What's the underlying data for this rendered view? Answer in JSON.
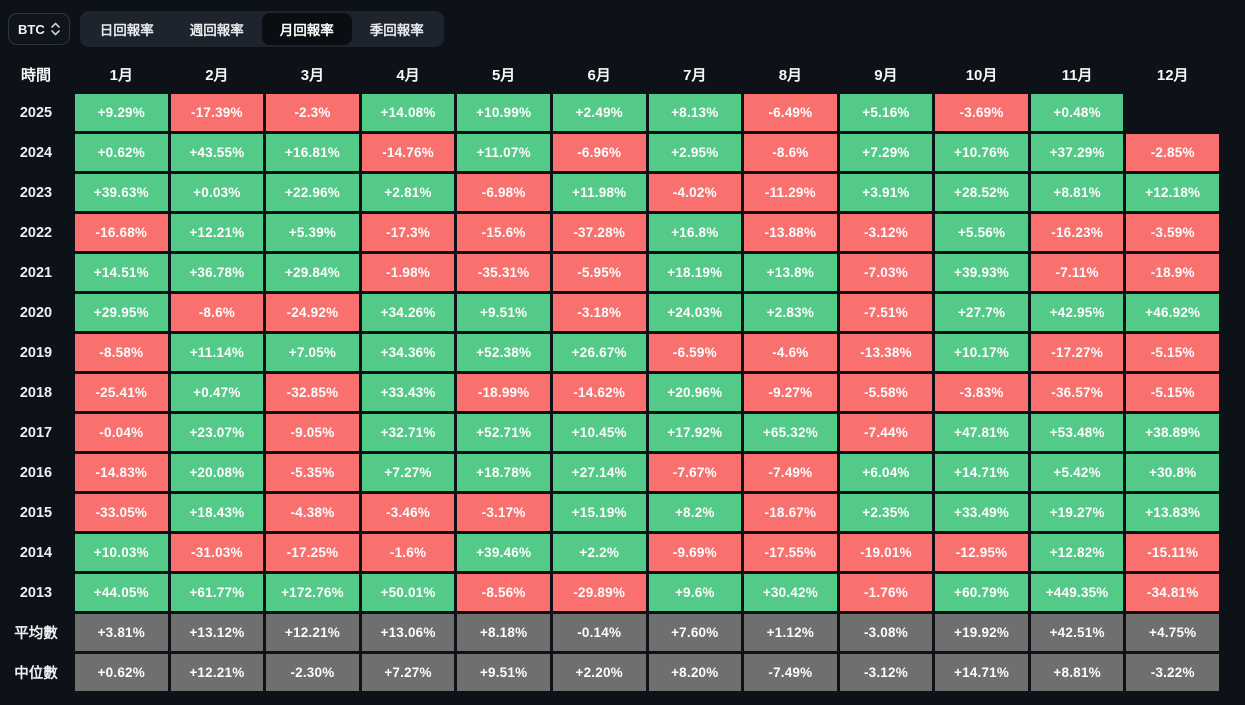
{
  "controls": {
    "symbol_select": {
      "value": "BTC"
    },
    "tabs": [
      {
        "label": "日回報率",
        "active": false
      },
      {
        "label": "週回報率",
        "active": false
      },
      {
        "label": "月回報率",
        "active": true
      },
      {
        "label": "季回報率",
        "active": false
      }
    ]
  },
  "table": {
    "time_header": "時間",
    "month_headers": [
      "1月",
      "2月",
      "3月",
      "4月",
      "5月",
      "6月",
      "7月",
      "8月",
      "9月",
      "10月",
      "11月",
      "12月"
    ],
    "rows": [
      {
        "label": "2025",
        "type": "year",
        "values": [
          "+9.29%",
          "-17.39%",
          "-2.3%",
          "+14.08%",
          "+10.99%",
          "+2.49%",
          "+8.13%",
          "-6.49%",
          "+5.16%",
          "-3.69%",
          "+0.48%",
          ""
        ]
      },
      {
        "label": "2024",
        "type": "year",
        "values": [
          "+0.62%",
          "+43.55%",
          "+16.81%",
          "-14.76%",
          "+11.07%",
          "-6.96%",
          "+2.95%",
          "-8.6%",
          "+7.29%",
          "+10.76%",
          "+37.29%",
          "-2.85%"
        ]
      },
      {
        "label": "2023",
        "type": "year",
        "values": [
          "+39.63%",
          "+0.03%",
          "+22.96%",
          "+2.81%",
          "-6.98%",
          "+11.98%",
          "-4.02%",
          "-11.29%",
          "+3.91%",
          "+28.52%",
          "+8.81%",
          "+12.18%"
        ]
      },
      {
        "label": "2022",
        "type": "year",
        "values": [
          "-16.68%",
          "+12.21%",
          "+5.39%",
          "-17.3%",
          "-15.6%",
          "-37.28%",
          "+16.8%",
          "-13.88%",
          "-3.12%",
          "+5.56%",
          "-16.23%",
          "-3.59%"
        ]
      },
      {
        "label": "2021",
        "type": "year",
        "values": [
          "+14.51%",
          "+36.78%",
          "+29.84%",
          "-1.98%",
          "-35.31%",
          "-5.95%",
          "+18.19%",
          "+13.8%",
          "-7.03%",
          "+39.93%",
          "-7.11%",
          "-18.9%"
        ]
      },
      {
        "label": "2020",
        "type": "year",
        "values": [
          "+29.95%",
          "-8.6%",
          "-24.92%",
          "+34.26%",
          "+9.51%",
          "-3.18%",
          "+24.03%",
          "+2.83%",
          "-7.51%",
          "+27.7%",
          "+42.95%",
          "+46.92%"
        ]
      },
      {
        "label": "2019",
        "type": "year",
        "values": [
          "-8.58%",
          "+11.14%",
          "+7.05%",
          "+34.36%",
          "+52.38%",
          "+26.67%",
          "-6.59%",
          "-4.6%",
          "-13.38%",
          "+10.17%",
          "-17.27%",
          "-5.15%"
        ]
      },
      {
        "label": "2018",
        "type": "year",
        "values": [
          "-25.41%",
          "+0.47%",
          "-32.85%",
          "+33.43%",
          "-18.99%",
          "-14.62%",
          "+20.96%",
          "-9.27%",
          "-5.58%",
          "-3.83%",
          "-36.57%",
          "-5.15%"
        ]
      },
      {
        "label": "2017",
        "type": "year",
        "values": [
          "-0.04%",
          "+23.07%",
          "-9.05%",
          "+32.71%",
          "+52.71%",
          "+10.45%",
          "+17.92%",
          "+65.32%",
          "-7.44%",
          "+47.81%",
          "+53.48%",
          "+38.89%"
        ]
      },
      {
        "label": "2016",
        "type": "year",
        "values": [
          "-14.83%",
          "+20.08%",
          "-5.35%",
          "+7.27%",
          "+18.78%",
          "+27.14%",
          "-7.67%",
          "-7.49%",
          "+6.04%",
          "+14.71%",
          "+5.42%",
          "+30.8%"
        ]
      },
      {
        "label": "2015",
        "type": "year",
        "values": [
          "-33.05%",
          "+18.43%",
          "-4.38%",
          "-3.46%",
          "-3.17%",
          "+15.19%",
          "+8.2%",
          "-18.67%",
          "+2.35%",
          "+33.49%",
          "+19.27%",
          "+13.83%"
        ]
      },
      {
        "label": "2014",
        "type": "year",
        "values": [
          "+10.03%",
          "-31.03%",
          "-17.25%",
          "-1.6%",
          "+39.46%",
          "+2.2%",
          "-9.69%",
          "-17.55%",
          "-19.01%",
          "-12.95%",
          "+12.82%",
          "-15.11%"
        ]
      },
      {
        "label": "2013",
        "type": "year",
        "values": [
          "+44.05%",
          "+61.77%",
          "+172.76%",
          "+50.01%",
          "-8.56%",
          "-29.89%",
          "+9.6%",
          "+30.42%",
          "-1.76%",
          "+60.79%",
          "+449.35%",
          "-34.81%"
        ]
      },
      {
        "label": "平均數",
        "type": "summary",
        "values": [
          "+3.81%",
          "+13.12%",
          "+12.21%",
          "+13.06%",
          "+8.18%",
          "-0.14%",
          "+7.60%",
          "+1.12%",
          "-3.08%",
          "+19.92%",
          "+42.51%",
          "+4.75%"
        ]
      },
      {
        "label": "中位數",
        "type": "summary",
        "values": [
          "+0.62%",
          "+12.21%",
          "-2.30%",
          "+7.27%",
          "+9.51%",
          "+2.20%",
          "+8.20%",
          "-7.49%",
          "-3.12%",
          "+14.71%",
          "+8.81%",
          "-3.22%"
        ]
      }
    ]
  },
  "colors": {
    "background": "#0d1118",
    "positive": "#54ca88",
    "negative": "#f8716e",
    "summary": "#6f6f6f",
    "active_tab_bg": "#0a0d12",
    "tab_group_bg": "#1e242e"
  }
}
